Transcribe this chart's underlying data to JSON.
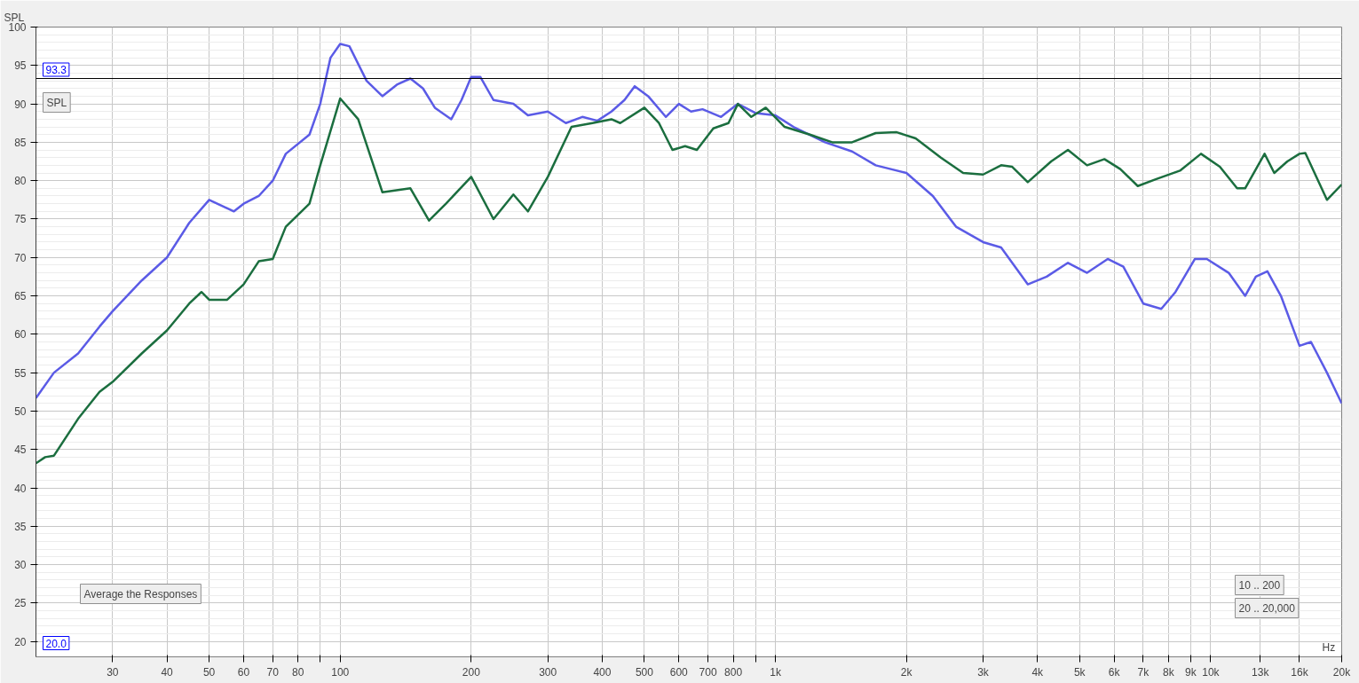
{
  "chart_data": {
    "type": "line",
    "ylabel": "SPL",
    "log": "x",
    "grid": true,
    "xlim": [
      20,
      20000
    ],
    "ylim": [
      18,
      100
    ],
    "xticks": [
      30,
      40,
      50,
      60,
      70,
      80,
      {
        "value": 90,
        "label": null
      },
      100,
      200,
      300,
      400,
      500,
      600,
      700,
      800,
      {
        "value": 900,
        "label": null
      },
      {
        "value": 1000,
        "label": "1k"
      },
      {
        "value": 2000,
        "label": "2k"
      },
      {
        "value": 3000,
        "label": "3k"
      },
      {
        "value": 4000,
        "label": "4k"
      },
      {
        "value": 5000,
        "label": "5k"
      },
      {
        "value": 6000,
        "label": "6k"
      },
      {
        "value": 7000,
        "label": "7k"
      },
      {
        "value": 8000,
        "label": "8k"
      },
      {
        "value": 9000,
        "label": "9k"
      },
      {
        "value": 10000,
        "label": "10k"
      },
      {
        "value": 13000,
        "label": "13k"
      },
      {
        "value": 16000,
        "label": "16k"
      },
      {
        "value": 20000,
        "label": "20k"
      }
    ],
    "xlabel": "Hz",
    "yticks": [
      20,
      25,
      30,
      35,
      40,
      45,
      50,
      55,
      60,
      65,
      70,
      75,
      80,
      85,
      90,
      95,
      100
    ],
    "ref_lines": [
      {
        "axis": "y",
        "value": 93.3,
        "label": "93.3",
        "color": "#000000"
      },
      {
        "axis": "x",
        "value": 20,
        "label": "20.0",
        "color": "#000000"
      }
    ],
    "annotations": [
      "SPL",
      "Average the Responses",
      "10 .. 200",
      "20 .. 20,000"
    ],
    "series": [
      {
        "color": "#5b5be6",
        "x": [
          20,
          22,
          25,
          28,
          30,
          35,
          40,
          45,
          50,
          57,
          60,
          65,
          70,
          75,
          85,
          90,
          95,
          100,
          105,
          115,
          125,
          135,
          145,
          155,
          165,
          180,
          190,
          200,
          210,
          225,
          250,
          270,
          300,
          330,
          360,
          390,
          420,
          450,
          475,
          510,
          560,
          600,
          640,
          680,
          750,
          820,
          900,
          1000,
          1100,
          1300,
          1500,
          1700,
          2000,
          2300,
          2600,
          3000,
          3300,
          3800,
          4200,
          4700,
          5200,
          5800,
          6300,
          7000,
          7700,
          8300,
          9200,
          9800,
          11000,
          12000,
          12700,
          13500,
          14500,
          16000,
          17000,
          18500,
          20000
        ],
        "values": [
          51.7,
          55,
          57.5,
          61,
          63,
          67,
          70,
          74.5,
          77.5,
          76,
          77,
          78,
          80,
          83.5,
          86,
          90,
          96,
          97.8,
          97.5,
          93,
          91,
          92.5,
          93.3,
          92,
          89.5,
          88,
          90.5,
          93.5,
          93.5,
          90.5,
          90,
          88.5,
          89,
          87.5,
          88.3,
          87.8,
          89,
          90.5,
          92.3,
          91,
          88.3,
          90,
          89,
          89.3,
          88.3,
          90,
          88.8,
          88.5,
          87,
          85,
          83.8,
          82,
          81,
          78,
          74,
          72,
          71.3,
          66.5,
          67.5,
          69.3,
          68,
          69.8,
          68.8,
          64,
          63.3,
          65.5,
          69.8,
          69.8,
          68,
          65,
          67.5,
          68.2,
          65,
          58.5,
          59,
          55,
          51
        ]
      },
      {
        "color": "#1b6e3f",
        "x": [
          20,
          21,
          22,
          25,
          28,
          30,
          35,
          40,
          45,
          48,
          50,
          55,
          60,
          65,
          70,
          75,
          85,
          90,
          100,
          110,
          125,
          145,
          160,
          175,
          200,
          225,
          250,
          270,
          300,
          340,
          380,
          420,
          440,
          500,
          540,
          580,
          620,
          660,
          720,
          780,
          820,
          880,
          950,
          1050,
          1200,
          1350,
          1500,
          1700,
          1900,
          2100,
          2400,
          2700,
          3000,
          3300,
          3500,
          3800,
          4300,
          4700,
          5200,
          5700,
          6200,
          6800,
          7500,
          8500,
          9500,
          10500,
          11500,
          12000,
          13300,
          14000,
          15000,
          16000,
          16500,
          18500,
          20000
        ],
        "values": [
          43.2,
          44,
          44.2,
          49,
          52.5,
          53.8,
          57.5,
          60.5,
          64,
          65.5,
          64.5,
          64.5,
          66.5,
          69.5,
          69.8,
          74,
          77,
          82,
          90.7,
          88,
          78.5,
          79,
          74.8,
          77,
          80.5,
          75,
          78.2,
          76,
          80.5,
          87,
          87.5,
          88,
          87.5,
          89.5,
          87.5,
          84,
          84.5,
          84,
          86.8,
          87.5,
          90,
          88.3,
          89.5,
          87,
          86,
          85,
          85,
          86.2,
          86.3,
          85.5,
          83,
          81,
          80.8,
          82,
          81.8,
          79.8,
          82.5,
          84,
          82,
          82.8,
          81.5,
          79.3,
          80.2,
          81.3,
          83.5,
          81.8,
          79,
          79,
          83.5,
          81,
          82.5,
          83.5,
          83.6,
          77.5,
          79.5
        ]
      }
    ]
  }
}
